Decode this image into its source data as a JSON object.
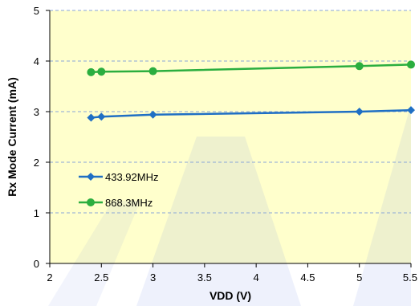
{
  "chart_data": {
    "type": "line",
    "xlabel": "VDD (V)",
    "ylabel": "Rx Mode Current (mA)",
    "xlim": [
      2,
      5.5
    ],
    "ylim": [
      0,
      5
    ],
    "x_ticks": [
      "2",
      "2.5",
      "3",
      "3.5",
      "4",
      "4.5",
      "5",
      "5.5"
    ],
    "y_ticks": [
      "0",
      "1",
      "2",
      "3",
      "4",
      "5"
    ],
    "grid": "horizontal-dashed",
    "legend_position": "left-center",
    "plot_background": "#FFFFCC",
    "series": [
      {
        "name": "433.92MHz",
        "color": "#1F6FC4",
        "marker": "diamond",
        "x": [
          2.4,
          2.5,
          3.0,
          5.0,
          5.5
        ],
        "y": [
          2.88,
          2.9,
          2.94,
          3.0,
          3.03
        ]
      },
      {
        "name": "868.3MHz",
        "color": "#2BAE3F",
        "marker": "circle",
        "x": [
          2.4,
          2.5,
          3.0,
          5.0,
          5.5
        ],
        "y": [
          3.78,
          3.79,
          3.8,
          3.9,
          3.93
        ]
      }
    ]
  }
}
